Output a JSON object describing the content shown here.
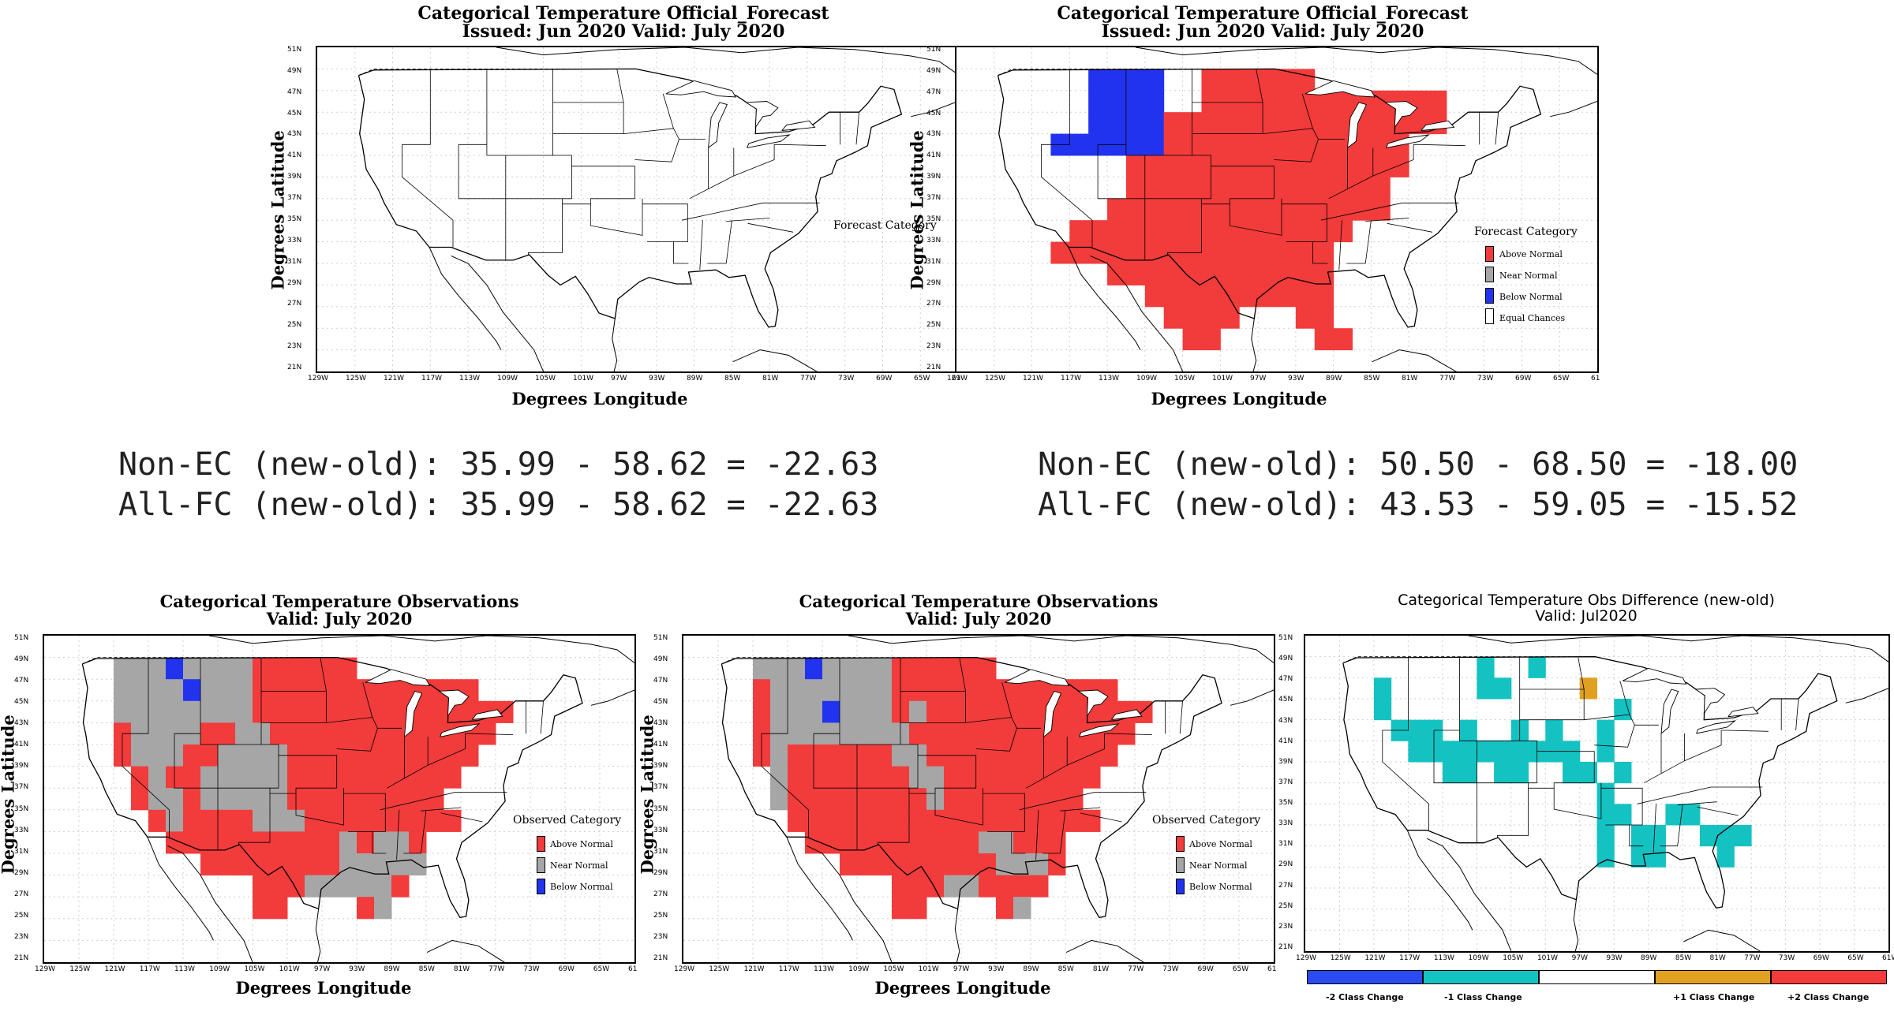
{
  "colors": {
    "above": "#f23b3b",
    "near": "#a6a6a6",
    "below": "#2233f0",
    "equal": "#ffffff",
    "minus2": "#2a4bf0",
    "minus1": "#14c2c2",
    "plus1": "#e0a020",
    "plus2": "#f23b3b"
  },
  "axes": {
    "lat_ticks": [
      "51N",
      "49N",
      "47N",
      "45N",
      "43N",
      "41N",
      "39N",
      "37N",
      "35N",
      "33N",
      "31N",
      "29N",
      "27N",
      "25N",
      "23N",
      "21N"
    ],
    "lon_ticks": [
      "129W",
      "125W",
      "121W",
      "117W",
      "113W",
      "109W",
      "105W",
      "101W",
      "97W",
      "93W",
      "89W",
      "85W",
      "81W",
      "77W",
      "73W",
      "69W",
      "65W",
      "61"
    ],
    "lon_ticks_diff": [
      "129W",
      "125W",
      "121W",
      "117W",
      "113W",
      "109W",
      "105W",
      "101W",
      "97W",
      "93W",
      "89W",
      "85W",
      "81W",
      "77W",
      "73W",
      "69W",
      "65W",
      "61W"
    ],
    "ylabel": "Degrees Latitude",
    "xlabel": "Degrees Longitude"
  },
  "panels": {
    "fc_old": {
      "title1": "Categorical Temperature Official_Forecast",
      "title2": "Issued: Jun 2020 Valid: July 2020",
      "legend_title": "Forecast Category"
    },
    "fc_new": {
      "title1": "Categorical Temperature Official_Forecast",
      "title2": "Issued: Jun 2020 Valid: July 2020",
      "legend_title": "Forecast Category",
      "legend": [
        "Above Normal",
        "Near Normal",
        "Below Normal",
        "Equal Chances"
      ]
    },
    "obs_old": {
      "title1": "Categorical Temperature Observations",
      "title2": "Valid: July 2020",
      "legend_title": "Observed Category",
      "legend": [
        "Above Normal",
        "Near Normal",
        "Below Normal"
      ]
    },
    "obs_new": {
      "title1": "Categorical Temperature Observations",
      "title2": "Valid: July 2020",
      "legend_title": "Observed Category",
      "legend": [
        "Above Normal",
        "Near Normal",
        "Below Normal"
      ]
    },
    "diff": {
      "title1": "Categorical Temperature Obs Difference (new-old)",
      "title2": "Valid: Jul2020",
      "legend": [
        "-2 Class Change",
        "-1 Class Change",
        "+1 Class Change",
        "+2 Class Change"
      ]
    }
  },
  "stats": {
    "left1": "Non-EC (new-old): 35.99 - 58.62 = -22.63",
    "left2": "All-FC (new-old): 35.99 - 58.62 = -22.63",
    "right1": "Non-EC (new-old): 50.50 - 68.50 = -18.00",
    "right2": "All-FC (new-old): 43.53 - 59.05 = -15.52"
  }
}
